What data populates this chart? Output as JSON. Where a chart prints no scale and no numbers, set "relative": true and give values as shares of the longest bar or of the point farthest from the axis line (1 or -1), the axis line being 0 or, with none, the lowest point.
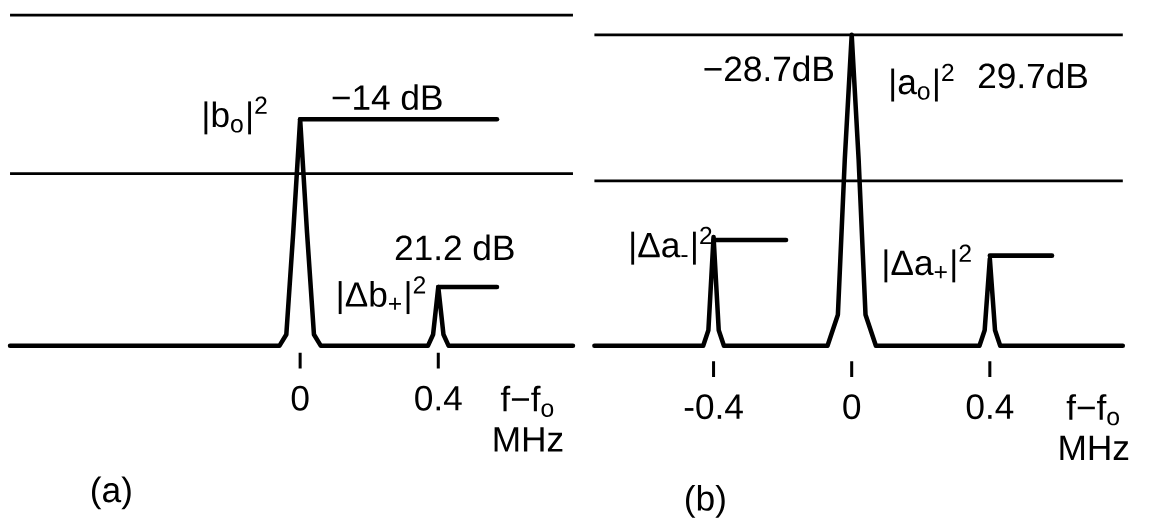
{
  "chart_data": [
    {
      "type": "line",
      "relative": true,
      "title": "(a)",
      "xlabel": "f−f$_{o}$ MHz",
      "xlim": [
        -0.84,
        0.79
      ],
      "xticks": [
        0,
        0.4
      ],
      "tick_labels": "x",
      "series": [
        {
          "color": "#000000",
          "x": [
            -0.84,
            -0.06,
            -0.04,
            -0.02,
            0,
            0.02,
            0.04,
            0.06,
            0.37,
            0.385,
            0.4,
            0.415,
            0.43,
            0.79
          ],
          "values": [
            0,
            0,
            0.05,
            0.5,
            1,
            0.5,
            0.05,
            0,
            0,
            0.05,
            0.26,
            0.05,
            0,
            0
          ]
        },
        {
          "color": "#000000",
          "x": [
            0,
            0.57
          ],
          "values": [
            1,
            1
          ]
        },
        {
          "color": "#000000",
          "x": [
            0.4,
            0.57
          ],
          "values": [
            0.26,
            0.26
          ]
        }
      ],
      "ref_lines": [
        {
          "axis": "y",
          "value": 1.46
        },
        {
          "axis": "y",
          "value": 0.76
        }
      ],
      "annotations": [
        "|b$_{o}$|$^{2}$",
        "−14 dB",
        "21.2 dB",
        "|Δb$_{+}$|$^{2}$"
      ]
    },
    {
      "type": "line",
      "relative": true,
      "title": "(b)",
      "xlabel": "f−f$_{o}$ MHz",
      "xlim": [
        -0.745,
        0.785
      ],
      "xticks": [
        -0.4,
        0,
        0.4
      ],
      "tick_labels": "x",
      "series": [
        {
          "color": "#000000",
          "x": [
            -0.745,
            -0.43,
            -0.415,
            -0.4,
            -0.385,
            -0.37,
            -0.07,
            -0.04,
            -0.02,
            0,
            0.02,
            0.04,
            0.07,
            0.37,
            0.385,
            0.4,
            0.415,
            0.43,
            0.785
          ],
          "values": [
            0,
            0,
            0.05,
            0.35,
            0.05,
            0,
            0,
            0.1,
            0.6,
            1,
            0.6,
            0.1,
            0,
            0,
            0.05,
            0.28,
            0.05,
            0,
            0
          ]
        },
        {
          "color": "#000000",
          "x": [
            -0.4,
            -0.19
          ],
          "values": [
            0.34,
            0.34
          ]
        },
        {
          "color": "#000000",
          "x": [
            0.4,
            0.58
          ],
          "values": [
            0.29,
            0.29
          ]
        }
      ],
      "ref_lines": [
        {
          "axis": "y",
          "value": 1.0
        },
        {
          "axis": "y",
          "value": 0.53
        }
      ],
      "annotations": [
        "−28.7dB",
        "|a$_{o}$|$^{2}$",
        "29.7dB",
        "|Δa$_{-}$|$^{2}$",
        "|Δa$_{+}$|$^{2}$"
      ]
    }
  ]
}
